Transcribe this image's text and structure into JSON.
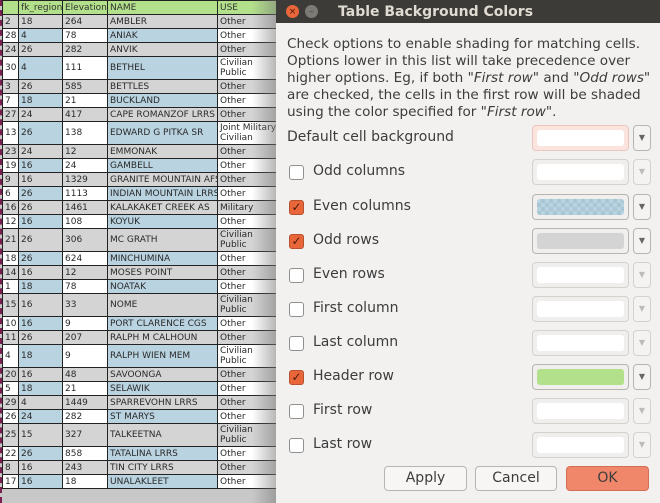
{
  "table": {
    "headers": [
      "",
      "fk_region",
      "Elevation",
      "NAME",
      "USE"
    ],
    "rows": [
      [
        "2",
        "18",
        "264",
        "AMBLER",
        "Other"
      ],
      [
        "28",
        "4",
        "78",
        "ANIAK",
        "Other"
      ],
      [
        "24",
        "26",
        "282",
        "ANVIK",
        "Other"
      ],
      [
        "30",
        "4",
        "111",
        "BETHEL",
        "Civilian Public"
      ],
      [
        "3",
        "26",
        "585",
        "BETTLES",
        "Other"
      ],
      [
        "7",
        "18",
        "21",
        "BUCKLAND",
        "Other"
      ],
      [
        "27",
        "24",
        "417",
        "CAPE ROMANZOF LRRS",
        "Other"
      ],
      [
        "13",
        "26",
        "138",
        "EDWARD G PITKA SR",
        "Joint Military Civilian"
      ],
      [
        "23",
        "24",
        "12",
        "EMMONAK",
        "Other"
      ],
      [
        "19",
        "16",
        "24",
        "GAMBELL",
        "Other"
      ],
      [
        "9",
        "16",
        "1329",
        "GRANITE MOUNTAIN AFS",
        "Other"
      ],
      [
        "6",
        "26",
        "1113",
        "INDIAN MOUNTAIN LRRS",
        "Other"
      ],
      [
        "16",
        "26",
        "1461",
        "KALAKAKET CREEK  AS",
        "Military"
      ],
      [
        "12",
        "16",
        "108",
        "KOYUK",
        "Other"
      ],
      [
        "21",
        "26",
        "306",
        "MC GRATH",
        "Civilian Public"
      ],
      [
        "18",
        "26",
        "624",
        "MINCHUMINA",
        "Other"
      ],
      [
        "14",
        "16",
        "12",
        "MOSES POINT",
        "Other"
      ],
      [
        "1",
        "18",
        "78",
        "NOATAK",
        "Other"
      ],
      [
        "15",
        "16",
        "33",
        "NOME",
        "Civilian Public"
      ],
      [
        "10",
        "16",
        "9",
        "PORT CLARENCE CGS",
        "Other"
      ],
      [
        "11",
        "26",
        "207",
        "RALPH M CALHOUN",
        "Other"
      ],
      [
        "4",
        "18",
        "9",
        "RALPH WIEN MEM",
        "Civilian Public"
      ],
      [
        "20",
        "16",
        "48",
        "SAVOONGA",
        "Other"
      ],
      [
        "5",
        "18",
        "21",
        "SELAWIK",
        "Other"
      ],
      [
        "29",
        "4",
        "1449",
        "SPARREVOHN LRRS",
        "Other"
      ],
      [
        "26",
        "24",
        "282",
        "ST MARYS",
        "Other"
      ],
      [
        "25",
        "15",
        "327",
        "TALKEETNA",
        "Civilian Public"
      ],
      [
        "22",
        "26",
        "858",
        "TATALINA LRRS",
        "Other"
      ],
      [
        "8",
        "16",
        "243",
        "TIN CITY LRRS",
        "Other"
      ],
      [
        "17",
        "16",
        "18",
        "UNALAKLEET",
        "Other"
      ]
    ]
  },
  "dialog": {
    "title": "Table Background Colors",
    "description_html": "Check options to enable shading for matching cells. Options lower in this list will take precedence over higher options. Eg, if both \"<i>First row</i>\" and \"<i>Odd rows</i>\" are checked, the cells in the first row will be shaded using the color specified for \"<i>First row</i>\".",
    "options": [
      {
        "label": "Default cell background",
        "checkbox": false,
        "checked": null,
        "color": "#ffffff",
        "enabled": true
      },
      {
        "label": "Odd columns",
        "checkbox": true,
        "checked": false,
        "color": "#ffffff",
        "enabled": false
      },
      {
        "label": "Even columns",
        "checkbox": true,
        "checked": true,
        "color": "#b9d3e0",
        "enabled": true
      },
      {
        "label": "Odd rows",
        "checkbox": true,
        "checked": true,
        "color": "#d4d4d4",
        "enabled": true
      },
      {
        "label": "Even rows",
        "checkbox": true,
        "checked": false,
        "color": "#ffffff",
        "enabled": false
      },
      {
        "label": "First column",
        "checkbox": true,
        "checked": false,
        "color": "#ffffff",
        "enabled": false
      },
      {
        "label": "Last column",
        "checkbox": true,
        "checked": false,
        "color": "#ffffff",
        "enabled": false
      },
      {
        "label": "Header row",
        "checkbox": true,
        "checked": true,
        "color": "#b3e08a",
        "enabled": true
      },
      {
        "label": "First row",
        "checkbox": true,
        "checked": false,
        "color": "#ffffff",
        "enabled": false
      },
      {
        "label": "Last row",
        "checkbox": true,
        "checked": false,
        "color": "#ffffff",
        "enabled": false
      }
    ],
    "buttons": {
      "apply": "Apply",
      "cancel": "Cancel",
      "ok": "OK"
    }
  }
}
